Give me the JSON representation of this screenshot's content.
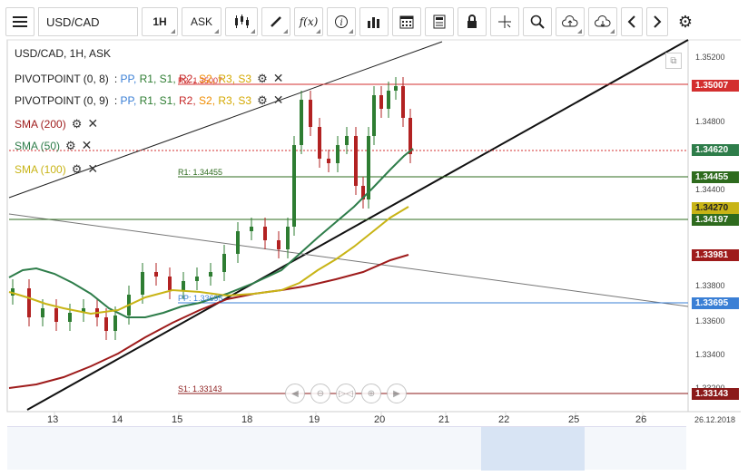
{
  "toolbar": {
    "menu_icon": "hamburger-icon",
    "symbol": "USD/CAD",
    "timeframe": "1H",
    "price_side": "ASK",
    "fx_label": "f(x)"
  },
  "chart_title": "USD/CAD, 1H, ASK",
  "legends": {
    "pivot1_name": "PIVOTPOINT (0, 8)",
    "pivot2_name": "PIVOTPOINT (0, 9)",
    "pivot_sep": ":",
    "pivot_levels": [
      "PP,",
      "R1,",
      "S1,",
      "R2,",
      "S2,",
      "R3,",
      "S3"
    ],
    "pivot_colors": [
      "#3a7fd5",
      "#2e7d32",
      "#2e7d32",
      "#c62828",
      "#ef8c00",
      "#d4a800",
      "#d4a800"
    ],
    "sma200": "SMA (200)",
    "sma50": "SMA (50)",
    "sma100": "SMA (100)"
  },
  "colors": {
    "sma200": "#9e1b1b",
    "sma50": "#2e7d4a",
    "sma100": "#c8b416",
    "pp": "#3a7fd5",
    "r1": "#2e6b1e",
    "r2": "#d32f2f",
    "s1": "#8b1a1a",
    "current": "#d32f2f"
  },
  "price_tags": [
    {
      "value": "1.35007",
      "color": "#d32f2f"
    },
    {
      "value": "1.34620",
      "color": "#2e7d4a"
    },
    {
      "value": "1.34455",
      "color": "#2e6b1e"
    },
    {
      "value": "1.34270",
      "color": "#c8b416"
    },
    {
      "value": "1.34197",
      "color": "#2e6b1e"
    },
    {
      "value": "1.33981",
      "color": "#9e1b1b"
    },
    {
      "value": "1.33695",
      "color": "#3a7fd5"
    },
    {
      "value": "1.33143",
      "color": "#8b1a1a"
    }
  ],
  "price_axis": [
    "1.35200",
    "1.34800",
    "1.34400",
    "1.33800",
    "1.33600",
    "1.33400",
    "1.33200"
  ],
  "line_labels": {
    "r2": "R2: 1.35007",
    "r1": "R1: 1.34455",
    "pp": "PP: 1.33695",
    "s1": "S1: 1.33143"
  },
  "x_axis": [
    "13",
    "14",
    "15",
    "18",
    "19",
    "20",
    "21",
    "22",
    "25",
    "26"
  ],
  "datestamp": "26.12.2018"
}
